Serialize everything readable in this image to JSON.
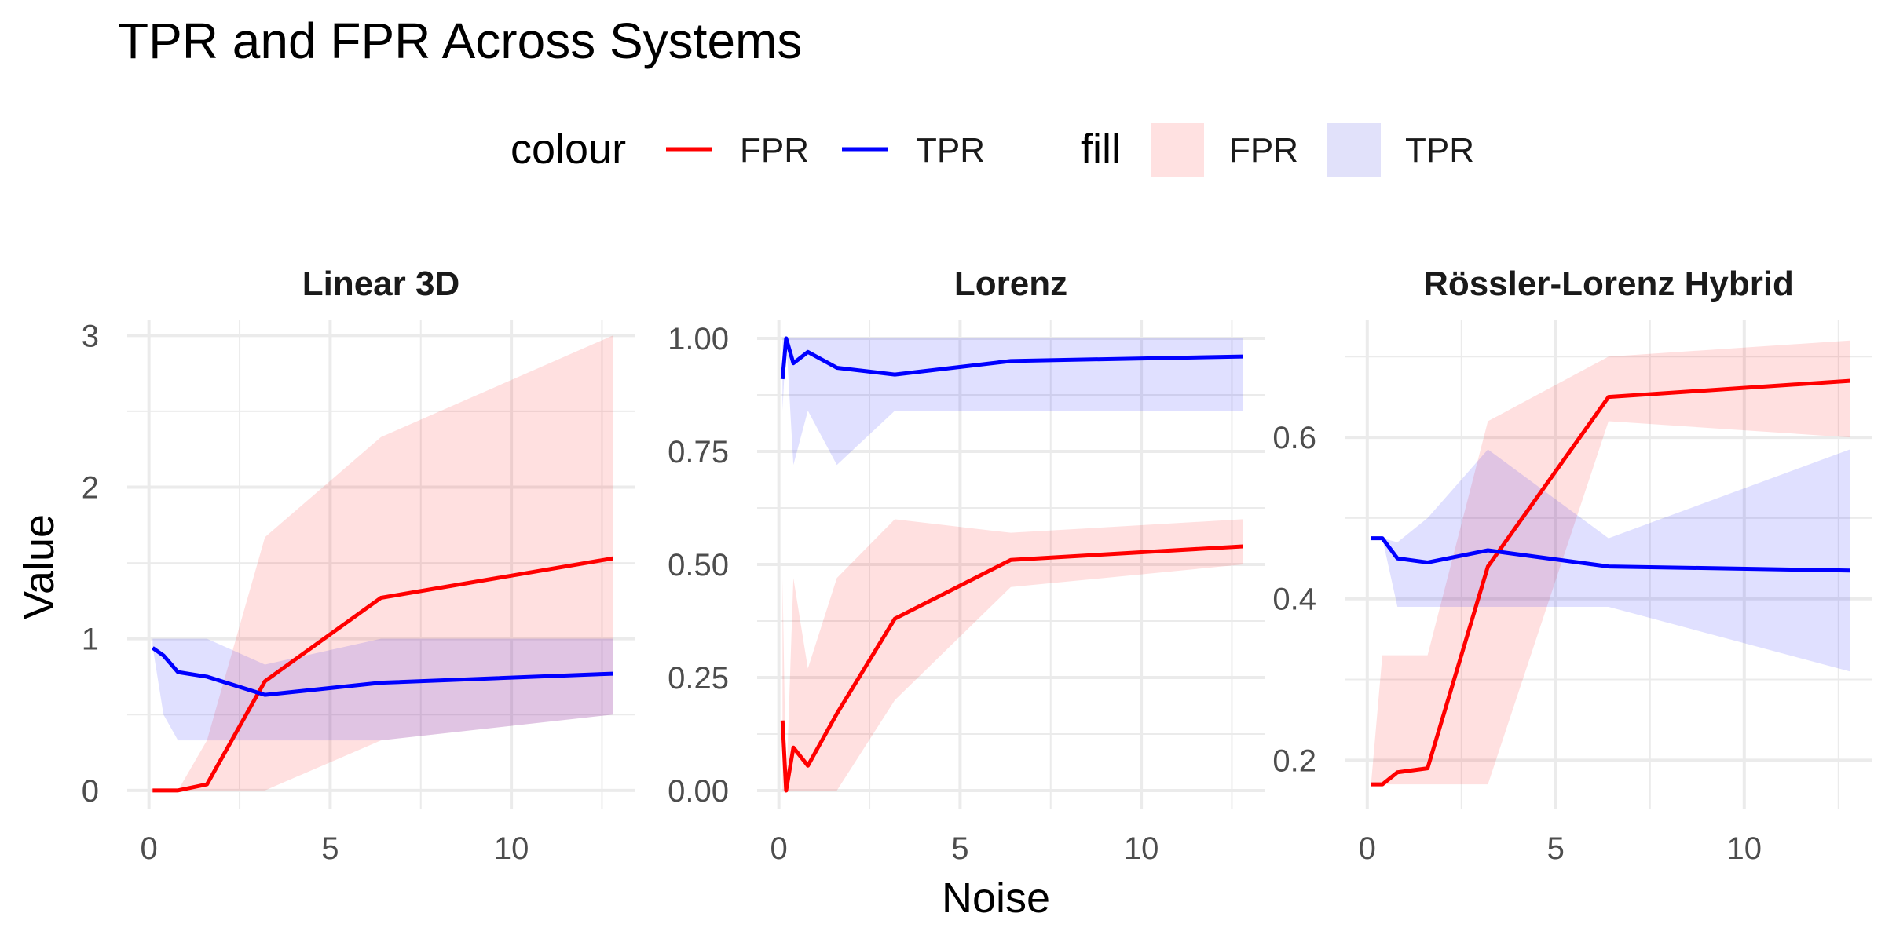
{
  "title": "TPR and FPR Across Systems",
  "xlabel": "Noise",
  "ylabel": "Value",
  "legend": {
    "colour_title": "colour",
    "fill_title": "fill",
    "colour_items": [
      {
        "label": "FPR",
        "color": "#ff0000"
      },
      {
        "label": "TPR",
        "color": "#0000ff"
      }
    ],
    "fill_items": [
      {
        "label": "FPR",
        "color": "#ffe1e1"
      },
      {
        "label": "TPR",
        "color": "#e1e1fa"
      }
    ]
  },
  "colors": {
    "FPR_line": "#ff0000",
    "TPR_line": "#0000ff",
    "FPR_fill": "#ff0000",
    "TPR_fill": "#0000ff",
    "fill_opacity": 0.12,
    "grid": "#ebebeb"
  },
  "chart_data": [
    {
      "type": "line",
      "title": "Linear 3D",
      "xlim": [
        -0.6,
        13.4
      ],
      "ylim": [
        -0.12,
        3.1
      ],
      "xticks": [
        0,
        5,
        10
      ],
      "xtick_labels": [
        "0",
        "5",
        "10"
      ],
      "yticks": [
        0,
        1,
        2,
        3
      ],
      "ytick_labels": [
        "0",
        "1",
        "2",
        "3"
      ],
      "x": [
        0.1,
        0.4,
        0.8,
        1.6,
        3.2,
        6.4,
        12.8
      ],
      "series": [
        {
          "name": "FPR",
          "values": [
            0.0,
            0.0,
            0.0,
            0.04,
            0.72,
            1.27,
            1.53
          ],
          "band_low": [
            0.0,
            0.0,
            0.0,
            0.0,
            0.0,
            0.33,
            0.5
          ],
          "band_high": [
            0.0,
            0.0,
            0.0,
            0.33,
            1.67,
            2.33,
            3.0
          ]
        },
        {
          "name": "TPR",
          "values": [
            0.94,
            0.89,
            0.78,
            0.75,
            0.63,
            0.71,
            0.77
          ],
          "band_low": [
            0.95,
            0.5,
            0.33,
            0.33,
            0.33,
            0.33,
            0.5
          ],
          "band_high": [
            1.0,
            1.0,
            1.0,
            1.0,
            0.83,
            1.0,
            1.0
          ]
        }
      ]
    },
    {
      "type": "line",
      "title": "Lorenz",
      "xlim": [
        -0.6,
        13.4
      ],
      "ylim": [
        -0.04,
        1.04
      ],
      "xticks": [
        0,
        5,
        10
      ],
      "xtick_labels": [
        "0",
        "5",
        "10"
      ],
      "yticks": [
        0,
        0.25,
        0.5,
        0.75,
        1.0
      ],
      "ytick_labels": [
        "0.00",
        "0.25",
        "0.50",
        "0.75",
        "1.00"
      ],
      "x": [
        0.1,
        0.2,
        0.4,
        0.8,
        1.6,
        3.2,
        6.4,
        12.8
      ],
      "series": [
        {
          "name": "FPR",
          "values": [
            0.155,
            0.0,
            0.095,
            0.055,
            0.17,
            0.38,
            0.51,
            0.54
          ],
          "band_low": [
            0.0,
            0.0,
            0.0,
            0.0,
            0.0,
            0.2,
            0.45,
            0.5
          ],
          "band_high": [
            0.47,
            0.0,
            0.47,
            0.27,
            0.47,
            0.6,
            0.57,
            0.6
          ]
        },
        {
          "name": "TPR",
          "values": [
            0.91,
            1.0,
            0.945,
            0.97,
            0.935,
            0.92,
            0.95,
            0.96
          ],
          "band_low": [
            0.84,
            1.0,
            0.72,
            0.84,
            0.72,
            0.84,
            0.84,
            0.84
          ],
          "band_high": [
            1.0,
            1.0,
            1.0,
            1.0,
            1.0,
            1.0,
            1.0,
            1.0
          ]
        }
      ]
    },
    {
      "type": "line",
      "title": "Rössler-Lorenz Hybrid",
      "xlim": [
        -0.6,
        13.4
      ],
      "ylim": [
        0.14,
        0.745
      ],
      "xticks": [
        0,
        5,
        10
      ],
      "xtick_labels": [
        "0",
        "5",
        "10"
      ],
      "yticks": [
        0.2,
        0.4,
        0.6
      ],
      "ytick_labels": [
        "0.2",
        "0.4",
        "0.6"
      ],
      "x": [
        0.1,
        0.4,
        0.8,
        1.6,
        3.2,
        6.4,
        12.8
      ],
      "series": [
        {
          "name": "FPR",
          "values": [
            0.17,
            0.17,
            0.185,
            0.19,
            0.44,
            0.65,
            0.67
          ],
          "band_low": [
            0.17,
            0.17,
            0.17,
            0.17,
            0.17,
            0.62,
            0.6
          ],
          "band_high": [
            0.17,
            0.33,
            0.33,
            0.33,
            0.62,
            0.7,
            0.72
          ]
        },
        {
          "name": "TPR",
          "values": [
            0.475,
            0.475,
            0.45,
            0.445,
            0.46,
            0.44,
            0.435
          ],
          "band_low": [
            0.475,
            0.475,
            0.39,
            0.39,
            0.39,
            0.39,
            0.31
          ],
          "band_high": [
            0.475,
            0.475,
            0.47,
            0.5,
            0.585,
            0.475,
            0.585
          ]
        }
      ]
    }
  ]
}
